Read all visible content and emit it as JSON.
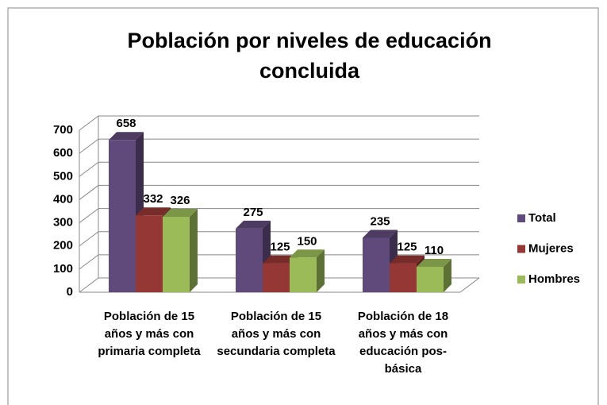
{
  "chart_data": {
    "type": "bar3d",
    "title": "Población por niveles de educación concluida",
    "categories": [
      "Población de 15 años y más con primaria completa",
      "Población de 15 años y más con secundaria completa",
      "Población de 18 años y más con educación pos-básica"
    ],
    "series": [
      {
        "name": "Total",
        "color": "#604a7b",
        "values": [
          658,
          275,
          235
        ]
      },
      {
        "name": "Mujeres",
        "color": "#953735",
        "values": [
          332,
          125,
          125
        ]
      },
      {
        "name": "Hombres",
        "color": "#9bbb59",
        "values": [
          326,
          150,
          110
        ]
      }
    ],
    "ylim": [
      0,
      700
    ],
    "yticks": [
      0,
      100,
      200,
      300,
      400,
      500,
      600,
      700
    ],
    "grid": true,
    "legend": "right"
  }
}
